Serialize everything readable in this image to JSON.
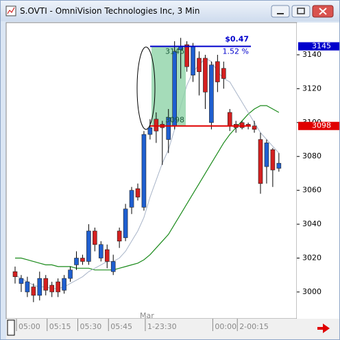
{
  "window_title": "S.OVTI - OmniVision Technologies Inc, 3 Min",
  "chart_data": {
    "type": "candlestick",
    "categories": [
      "05:00",
      null,
      null,
      null,
      null,
      "05:15",
      null,
      null,
      null,
      null,
      "05:30",
      null,
      null,
      null,
      null,
      "05:45",
      null,
      null,
      null,
      null,
      null,
      "1-23:30",
      null,
      null,
      null,
      null,
      null,
      null,
      null,
      null,
      null,
      null,
      "00:00",
      null,
      null,
      null,
      "2-00:15",
      null,
      null,
      null,
      null,
      null,
      null,
      null
    ],
    "open": [
      3012,
      3005,
      3000,
      3003,
      2998,
      3008,
      3004,
      3006,
      3001,
      3008,
      3016,
      3020,
      3018,
      3036,
      3020,
      3025,
      3012,
      3036,
      3032,
      3050,
      3061,
      3050,
      3093,
      3102,
      3099,
      3090,
      3098,
      3143,
      3146,
      3128,
      3138,
      3138,
      3100,
      3136,
      3132,
      3106,
      3099,
      3100,
      3099,
      3098,
      3090,
      3074,
      3084,
      3073
    ],
    "high": [
      3015,
      3010,
      3009,
      3005,
      3012,
      3010,
      3006,
      3008,
      3010,
      3015,
      3024,
      3022,
      3040,
      3038,
      3030,
      3028,
      3022,
      3038,
      3052,
      3062,
      3064,
      3095,
      3102,
      3106,
      3101,
      3108,
      3148,
      3150,
      3148,
      3147,
      3142,
      3140,
      3136,
      3140,
      3136,
      3108,
      3101,
      3101,
      3100,
      3101,
      3094,
      3090,
      3085,
      3082
    ],
    "low": [
      3005,
      3000,
      2997,
      2994,
      2995,
      2998,
      2997,
      2997,
      2999,
      3006,
      3013,
      3016,
      3016,
      3024,
      3018,
      3014,
      3010,
      3026,
      3030,
      3046,
      3054,
      3048,
      3090,
      3088,
      3075,
      3082,
      3096,
      3126,
      3130,
      3124,
      3116,
      3108,
      3096,
      3118,
      3120,
      3095,
      3094,
      3096,
      3096,
      3094,
      3058,
      3064,
      3062,
      3071
    ],
    "close": [
      3009,
      3008,
      3006,
      2998,
      3008,
      3001,
      3000,
      3000,
      3008,
      3013,
      3020,
      3018,
      3036,
      3028,
      3028,
      3018,
      3018,
      3030,
      3049,
      3060,
      3056,
      3093,
      3097,
      3095,
      3097,
      3103,
      3142,
      3145,
      3133,
      3145,
      3130,
      3118,
      3134,
      3124,
      3126,
      3098,
      3097,
      3097,
      3098,
      3096,
      3064,
      3088,
      3072,
      3076
    ],
    "up_color": "#1f5fd0",
    "down_color": "#d42020",
    "series": [
      {
        "color": "#1a8a1a",
        "values": [
          3020,
          3020,
          3019,
          3018,
          3017,
          3016,
          3016,
          3015,
          3015,
          3015,
          3014,
          3014,
          3014,
          3013,
          3013,
          3013,
          3013,
          3014,
          3015,
          3016,
          3017,
          3019,
          3022,
          3026,
          3030,
          3034,
          3040,
          3046,
          3052,
          3058,
          3064,
          3070,
          3076,
          3082,
          3088,
          3093,
          3097,
          3101,
          3105,
          3108,
          3110,
          3110,
          3108,
          3106
        ]
      },
      {
        "color": "#a8b4c8",
        "values": [
          3010,
          3008,
          3006,
          3004,
          3003,
          3003,
          3002,
          3002,
          3003,
          3005,
          3007,
          3009,
          3012,
          3014,
          3016,
          3018,
          3018,
          3020,
          3024,
          3030,
          3036,
          3044,
          3056,
          3066,
          3076,
          3084,
          3096,
          3110,
          3122,
          3130,
          3134,
          3138,
          3136,
          3130,
          3126,
          3124,
          3118,
          3112,
          3106,
          3100,
          3094,
          3090,
          3086,
          3082
        ]
      }
    ],
    "ylim": [
      2985,
      3159
    ],
    "yticks": [
      3000,
      3020,
      3040,
      3060,
      3080,
      3100,
      3120,
      3140
    ],
    "levels": [
      {
        "value": 3145,
        "label": "3145",
        "color": "#0000cc"
      },
      {
        "value": 3098,
        "label": "3098",
        "color": "#e00000"
      }
    ],
    "annotations": {
      "change": "$0.47",
      "percent": "1.52 %",
      "top": "3146",
      "bottom": "3098",
      "month": "Mar"
    }
  }
}
